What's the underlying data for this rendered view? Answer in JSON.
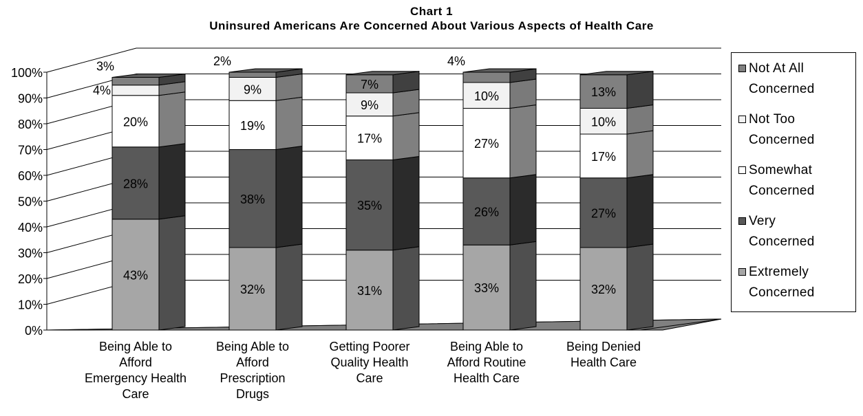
{
  "chart_data": {
    "type": "bar",
    "stacked": true,
    "three_d": true,
    "title": "Chart 1",
    "subtitle": "Uninsured Americans Are Concerned About Various Aspects of Health Care",
    "categories": [
      "Being Able to\nAfford\nEmergency Health\nCare",
      "Being Able to\nAfford\nPrescription\nDrugs",
      "Getting Poorer\nQuality Health\nCare",
      "Being Able to\nAfford Routine\nHealth Care",
      "Being Denied\nHealth Care"
    ],
    "series": [
      {
        "name": "Extremely\nConcerned",
        "values": [
          43,
          32,
          31,
          33,
          32
        ],
        "color": "#a6a6a6",
        "side_color": "#4f4f4f",
        "top_color": "#8c8c8c"
      },
      {
        "name": "Very\nConcerned",
        "values": [
          28,
          38,
          35,
          26,
          27
        ],
        "color": "#595959",
        "side_color": "#2b2b2b",
        "top_color": "#3e3e3e"
      },
      {
        "name": "Somewhat\nConcerned",
        "values": [
          20,
          19,
          17,
          27,
          17
        ],
        "color": "#ffffff",
        "side_color": "#808080",
        "top_color": "#bfbfbf"
      },
      {
        "name": "Not Too\nConcerned",
        "values": [
          4,
          9,
          9,
          10,
          10
        ],
        "color": "#f2f2f2",
        "side_color": "#7a7a7a",
        "top_color": "#bdbdbd"
      },
      {
        "name": "Not At All\nConcerned",
        "values": [
          3,
          2,
          7,
          4,
          13
        ],
        "color": "#808080",
        "side_color": "#404040",
        "top_color": "#5e5e5e"
      }
    ],
    "data_labels": [
      [
        "43%",
        "28%",
        "20%",
        "4%",
        "3%"
      ],
      [
        "32%",
        "38%",
        "19%",
        "9%",
        "2%"
      ],
      [
        "31%",
        "35%",
        "17%",
        "9%",
        "7%"
      ],
      [
        "33%",
        "26%",
        "27%",
        "10%",
        "4%"
      ],
      [
        "32%",
        "27%",
        "17%",
        "10%",
        "13%"
      ]
    ],
    "yticks": [
      "0%",
      "10%",
      "20%",
      "30%",
      "40%",
      "50%",
      "60%",
      "70%",
      "80%",
      "90%",
      "100%"
    ],
    "ylim": [
      0,
      100
    ],
    "grid": true,
    "legend_position": "right",
    "floor_color": "#808080"
  }
}
